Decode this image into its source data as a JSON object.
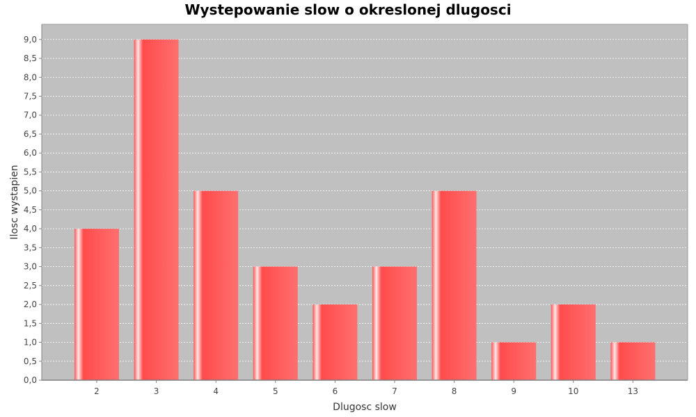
{
  "chart_data": {
    "type": "bar",
    "title": "Wystepowanie slow o okreslonej dlugosci",
    "xlabel": "Dlugosc slow",
    "ylabel": "Ilosc wystapien",
    "categories": [
      "2",
      "3",
      "4",
      "5",
      "6",
      "7",
      "8",
      "9",
      "10",
      "13"
    ],
    "values": [
      4,
      9,
      5,
      3,
      2,
      3,
      5,
      1,
      2,
      1
    ],
    "ylim": [
      0,
      9.4
    ],
    "yticks": [
      "0,0",
      "0,5",
      "1,0",
      "1,5",
      "2,0",
      "2,5",
      "3,0",
      "3,5",
      "4,0",
      "4,5",
      "5,0",
      "5,5",
      "6,0",
      "6,5",
      "7,0",
      "7,5",
      "8,0",
      "8,5",
      "9,0"
    ],
    "grid": true,
    "legend": "none",
    "colors": {
      "plot_background": "#c0c0c0",
      "bar": "#ff5a5a",
      "grid": "#ffffff"
    }
  }
}
